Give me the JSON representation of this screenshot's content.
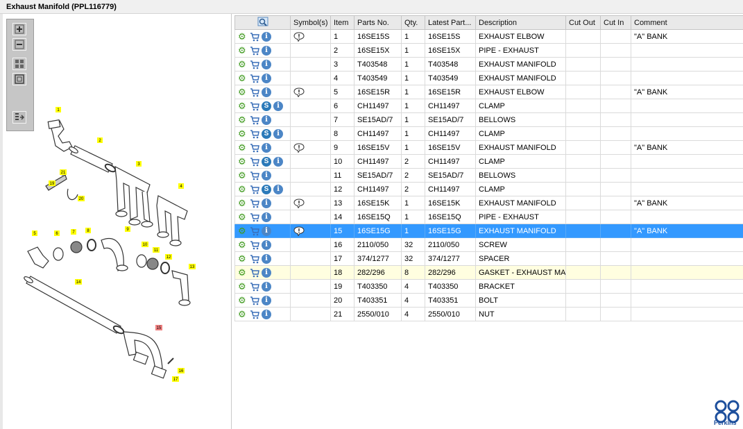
{
  "window": {
    "title": "Exhaust Manifold (PPL116779)"
  },
  "toolbar": {
    "buttons": [
      {
        "name": "zoom-in",
        "icon": "zoom-in-icon"
      },
      {
        "name": "zoom-out",
        "icon": "zoom-out-icon"
      },
      {
        "name": "fit-all",
        "icon": "fit-icon"
      },
      {
        "name": "actual-size",
        "icon": "actual-size-icon"
      },
      {
        "name": "toggle-list",
        "icon": "list-toggle-icon"
      }
    ]
  },
  "table": {
    "columns": [
      "",
      "Symbol(s)",
      "Item",
      "Parts No.",
      "Qty.",
      "Latest Part...",
      "Description",
      "Cut Out",
      "Cut In",
      "Comment"
    ],
    "rows": [
      {
        "s": false,
        "sym": true,
        "item": "1",
        "part": "16SE15S",
        "qty": "1",
        "latest": "16SE15S",
        "desc": "EXHAUST ELBOW",
        "out": "",
        "in": "",
        "comment": "\"A\" BANK"
      },
      {
        "s": false,
        "sym": false,
        "item": "2",
        "part": "16SE15X",
        "qty": "1",
        "latest": "16SE15X",
        "desc": "PIPE - EXHAUST",
        "out": "",
        "in": "",
        "comment": ""
      },
      {
        "s": false,
        "sym": false,
        "item": "3",
        "part": "T403548",
        "qty": "1",
        "latest": "T403548",
        "desc": "EXHAUST MANIFOLD",
        "out": "",
        "in": "",
        "comment": ""
      },
      {
        "s": false,
        "sym": false,
        "item": "4",
        "part": "T403549",
        "qty": "1",
        "latest": "T403549",
        "desc": "EXHAUST MANIFOLD",
        "out": "",
        "in": "",
        "comment": ""
      },
      {
        "s": false,
        "sym": true,
        "item": "5",
        "part": "16SE15R",
        "qty": "1",
        "latest": "16SE15R",
        "desc": "EXHAUST ELBOW",
        "out": "",
        "in": "",
        "comment": "\"A\" BANK"
      },
      {
        "s": true,
        "sym": false,
        "item": "6",
        "part": "CH11497",
        "qty": "1",
        "latest": "CH11497",
        "desc": "CLAMP",
        "out": "",
        "in": "",
        "comment": ""
      },
      {
        "s": false,
        "sym": false,
        "item": "7",
        "part": "SE15AD/7",
        "qty": "1",
        "latest": "SE15AD/7",
        "desc": "BELLOWS",
        "out": "",
        "in": "",
        "comment": ""
      },
      {
        "s": true,
        "sym": false,
        "item": "8",
        "part": "CH11497",
        "qty": "1",
        "latest": "CH11497",
        "desc": "CLAMP",
        "out": "",
        "in": "",
        "comment": ""
      },
      {
        "s": false,
        "sym": true,
        "item": "9",
        "part": "16SE15V",
        "qty": "1",
        "latest": "16SE15V",
        "desc": "EXHAUST MANIFOLD",
        "out": "",
        "in": "",
        "comment": "\"A\" BANK"
      },
      {
        "s": true,
        "sym": false,
        "item": "10",
        "part": "CH11497",
        "qty": "2",
        "latest": "CH11497",
        "desc": "CLAMP",
        "out": "",
        "in": "",
        "comment": ""
      },
      {
        "s": false,
        "sym": false,
        "item": "11",
        "part": "SE15AD/7",
        "qty": "2",
        "latest": "SE15AD/7",
        "desc": "BELLOWS",
        "out": "",
        "in": "",
        "comment": ""
      },
      {
        "s": true,
        "sym": false,
        "item": "12",
        "part": "CH11497",
        "qty": "2",
        "latest": "CH11497",
        "desc": "CLAMP",
        "out": "",
        "in": "",
        "comment": ""
      },
      {
        "s": false,
        "sym": true,
        "item": "13",
        "part": "16SE15K",
        "qty": "1",
        "latest": "16SE15K",
        "desc": "EXHAUST MANIFOLD",
        "out": "",
        "in": "",
        "comment": "\"A\" BANK"
      },
      {
        "s": false,
        "sym": false,
        "item": "14",
        "part": "16SE15Q",
        "qty": "1",
        "latest": "16SE15Q",
        "desc": "PIPE - EXHAUST",
        "out": "",
        "in": "",
        "comment": ""
      },
      {
        "s": false,
        "sym": true,
        "item": "15",
        "part": "16SE15G",
        "qty": "1",
        "latest": "16SE15G",
        "desc": "EXHAUST MANIFOLD",
        "out": "",
        "in": "",
        "comment": "\"A\" BANK",
        "selected": true
      },
      {
        "s": false,
        "sym": false,
        "item": "16",
        "part": "2110/050",
        "qty": "32",
        "latest": "2110/050",
        "desc": "SCREW",
        "out": "",
        "in": "",
        "comment": ""
      },
      {
        "s": false,
        "sym": false,
        "item": "17",
        "part": "374/1277",
        "qty": "32",
        "latest": "374/1277",
        "desc": "SPACER",
        "out": "",
        "in": "",
        "comment": ""
      },
      {
        "s": false,
        "sym": false,
        "item": "18",
        "part": "282/296",
        "qty": "8",
        "latest": "282/296",
        "desc": "GASKET - EXHAUST MANIFOLD",
        "out": "",
        "in": "",
        "comment": "",
        "highlight": true
      },
      {
        "s": false,
        "sym": false,
        "item": "19",
        "part": "T403350",
        "qty": "4",
        "latest": "T403350",
        "desc": "BRACKET",
        "out": "",
        "in": "",
        "comment": ""
      },
      {
        "s": false,
        "sym": false,
        "item": "20",
        "part": "T403351",
        "qty": "4",
        "latest": "T403351",
        "desc": "BOLT",
        "out": "",
        "in": "",
        "comment": ""
      },
      {
        "s": false,
        "sym": false,
        "item": "21",
        "part": "2550/010",
        "qty": "4",
        "latest": "2550/010",
        "desc": "NUT",
        "out": "",
        "in": "",
        "comment": ""
      }
    ]
  },
  "diagram": {
    "callouts": [
      "1",
      "2",
      "3",
      "4",
      "5",
      "6",
      "7",
      "8",
      "9",
      "10",
      "11",
      "12",
      "13",
      "14",
      "15",
      "16",
      "17",
      "19",
      "20",
      "21"
    ],
    "selected_callout": "15"
  },
  "brand": {
    "name": "Perkins",
    "color": "#1d4f9c"
  },
  "colors": {
    "selection": "#3399ff",
    "highlight": "#fffee0",
    "gear": "#3f9a1e",
    "cart": "#3a6fb8",
    "callout": "#ffff00",
    "callout_selected": "#f08080"
  }
}
